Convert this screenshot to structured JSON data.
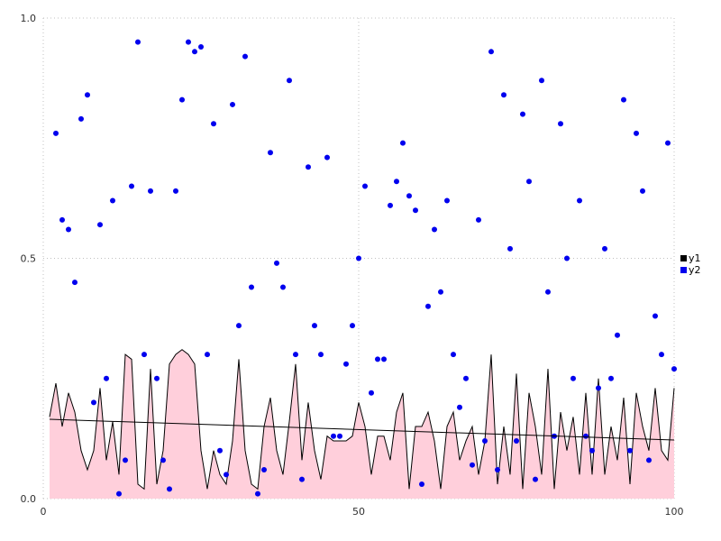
{
  "chart_data": {
    "type": "area+scatter",
    "title": "",
    "xlabel": "",
    "ylabel": "",
    "xlim": [
      0,
      100
    ],
    "ylim": [
      0,
      1
    ],
    "x_ticks": [
      0,
      50,
      100
    ],
    "x_tick_labels": [
      "0",
      "50",
      "100"
    ],
    "y_ticks": [
      0,
      0.5,
      1
    ],
    "y_tick_labels": [
      "0.0",
      "0.5",
      "1.0"
    ],
    "grid": "dotted",
    "grid_color": "#c0c0c0",
    "tick_label_color": "#303030",
    "legend": {
      "position": "right",
      "entries": [
        {
          "label": "y1",
          "color": "#000000"
        },
        {
          "label": "y2",
          "color": "#0000ee"
        }
      ]
    },
    "series": [
      {
        "name": "y1",
        "type": "area",
        "fill_color": "#ffcfdb",
        "line_color": "#000000",
        "x": [
          1,
          2,
          3,
          4,
          5,
          6,
          7,
          8,
          9,
          10,
          11,
          12,
          13,
          14,
          15,
          16,
          17,
          18,
          19,
          20,
          21,
          22,
          23,
          24,
          25,
          26,
          27,
          28,
          29,
          30,
          31,
          32,
          33,
          34,
          35,
          36,
          37,
          38,
          39,
          40,
          41,
          42,
          43,
          44,
          45,
          46,
          47,
          48,
          49,
          50,
          51,
          52,
          53,
          54,
          55,
          56,
          57,
          58,
          59,
          60,
          61,
          62,
          63,
          64,
          65,
          66,
          67,
          68,
          69,
          70,
          71,
          72,
          73,
          74,
          75,
          76,
          77,
          78,
          79,
          80,
          81,
          82,
          83,
          84,
          85,
          86,
          87,
          88,
          89,
          90,
          91,
          92,
          93,
          94,
          95,
          96,
          97,
          98,
          99,
          100
        ],
        "y": [
          0.17,
          0.24,
          0.15,
          0.22,
          0.18,
          0.1,
          0.06,
          0.1,
          0.23,
          0.08,
          0.16,
          0.05,
          0.3,
          0.29,
          0.03,
          0.02,
          0.27,
          0.03,
          0.1,
          0.28,
          0.3,
          0.31,
          0.3,
          0.28,
          0.1,
          0.02,
          0.1,
          0.05,
          0.03,
          0.12,
          0.29,
          0.1,
          0.03,
          0.02,
          0.15,
          0.21,
          0.1,
          0.05,
          0.16,
          0.28,
          0.08,
          0.2,
          0.1,
          0.04,
          0.13,
          0.12,
          0.12,
          0.12,
          0.13,
          0.2,
          0.15,
          0.05,
          0.13,
          0.13,
          0.08,
          0.18,
          0.22,
          0.02,
          0.15,
          0.15,
          0.18,
          0.12,
          0.02,
          0.15,
          0.18,
          0.08,
          0.12,
          0.15,
          0.05,
          0.12,
          0.3,
          0.03,
          0.15,
          0.05,
          0.26,
          0.02,
          0.22,
          0.15,
          0.05,
          0.27,
          0.02,
          0.18,
          0.1,
          0.17,
          0.05,
          0.22,
          0.05,
          0.25,
          0.05,
          0.15,
          0.08,
          0.21,
          0.03,
          0.22,
          0.15,
          0.1,
          0.23,
          0.1,
          0.08,
          0.23
        ]
      },
      {
        "name": "y2",
        "type": "scatter",
        "color": "#0000ee",
        "point_radius": 3,
        "x": [
          2,
          3,
          4,
          5,
          6,
          7,
          8,
          9,
          10,
          11,
          12,
          13,
          14,
          15,
          16,
          17,
          18,
          19,
          20,
          21,
          22,
          23,
          24,
          25,
          26,
          27,
          28,
          29,
          30,
          31,
          32,
          33,
          34,
          35,
          36,
          37,
          38,
          39,
          40,
          41,
          42,
          43,
          44,
          45,
          46,
          47,
          48,
          49,
          50,
          51,
          52,
          53,
          54,
          55,
          56,
          57,
          58,
          59,
          60,
          61,
          62,
          63,
          64,
          65,
          66,
          67,
          68,
          69,
          70,
          71,
          72,
          73,
          74,
          75,
          76,
          77,
          78,
          79,
          80,
          81,
          82,
          83,
          84,
          85,
          86,
          87,
          88,
          89,
          90,
          91,
          92,
          93,
          94,
          95,
          96,
          97,
          98,
          99,
          100
        ],
        "y": [
          0.76,
          0.58,
          0.56,
          0.45,
          0.79,
          0.84,
          0.2,
          0.57,
          0.25,
          0.62,
          0.01,
          0.08,
          0.65,
          0.95,
          0.3,
          0.64,
          0.25,
          0.08,
          0.02,
          0.64,
          0.83,
          0.95,
          0.93,
          0.94,
          0.3,
          0.78,
          0.1,
          0.05,
          0.82,
          0.36,
          0.92,
          0.44,
          0.01,
          0.06,
          0.72,
          0.49,
          0.44,
          0.87,
          0.3,
          0.04,
          0.69,
          0.36,
          0.3,
          0.71,
          0.13,
          0.13,
          0.28,
          0.36,
          0.5,
          0.65,
          0.22,
          0.29,
          0.29,
          0.61,
          0.66,
          0.74,
          0.63,
          0.6,
          0.03,
          0.4,
          0.56,
          0.43,
          0.62,
          0.3,
          0.19,
          0.25,
          0.07,
          0.58,
          0.12,
          0.93,
          0.06,
          0.84,
          0.52,
          0.12,
          0.8,
          0.66,
          0.04,
          0.87,
          0.43,
          0.13,
          0.78,
          0.5,
          0.25,
          0.62,
          0.13,
          0.1,
          0.23,
          0.52,
          0.25,
          0.34,
          0.83,
          0.1,
          0.76,
          0.64,
          0.08,
          0.38,
          0.3,
          0.74,
          0.27
        ]
      },
      {
        "name": "y1-trend",
        "type": "line",
        "color": "#000000",
        "x": [
          1,
          100
        ],
        "y": [
          0.165,
          0.122
        ]
      }
    ]
  }
}
